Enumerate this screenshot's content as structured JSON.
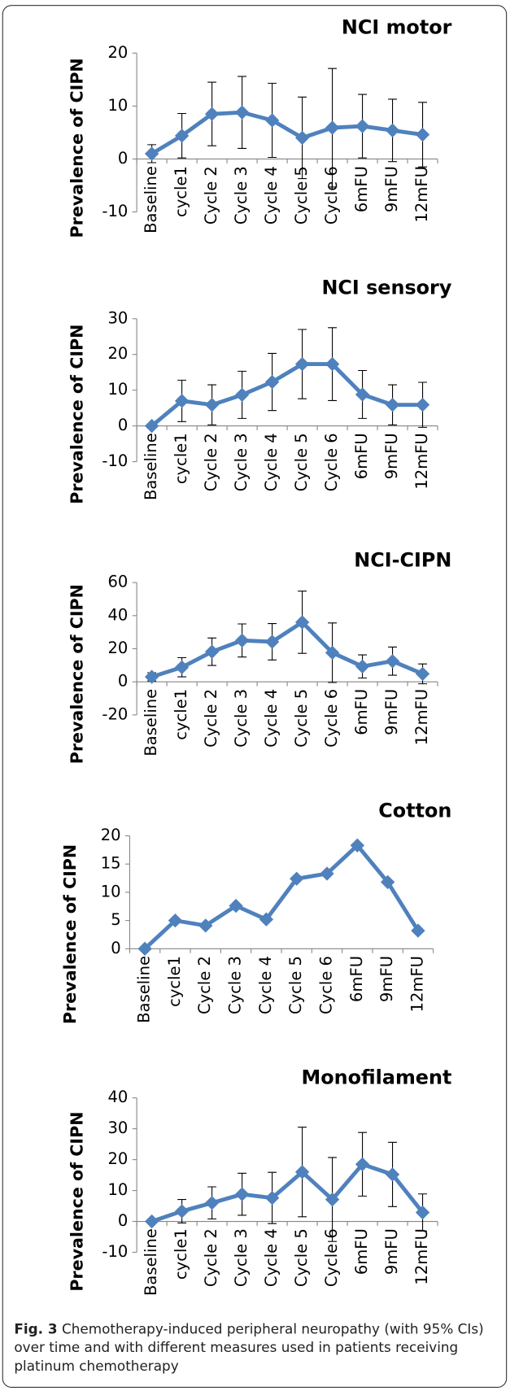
{
  "chart_data": [
    {
      "type": "line",
      "title": "NCI motor",
      "y_label": "Prevalence of CIPN",
      "categories": [
        "Baseline",
        "cycle1",
        "Cycle 2",
        "Cycle 3",
        "Cycle 4",
        "Cycle 5",
        "Cycle 6",
        "6mFU",
        "9mFU",
        "12mFU"
      ],
      "values": [
        1,
        4.4,
        8.5,
        8.8,
        7.3,
        4,
        5.9,
        6.2,
        5.4,
        4.6
      ],
      "errors": [
        1.7,
        4.2,
        6,
        6.8,
        7,
        7.7,
        11.2,
        6,
        5.9,
        6.1
      ],
      "color": "#4f81bd",
      "ylim": [
        -10,
        20
      ],
      "yticks": [
        -10,
        0,
        10,
        20
      ]
    },
    {
      "type": "line",
      "title": "NCI sensory",
      "y_label": "Prevalence of CIPN",
      "categories": [
        "Baseline",
        "cycle1",
        "Cycle 2",
        "Cycle 3",
        "Cycle 4",
        "Cycle 5",
        "Cycle 6",
        "6mFU",
        "9mFU",
        "12mFU"
      ],
      "values": [
        0,
        7,
        5.9,
        8.7,
        12.3,
        17.3,
        17.3,
        8.8,
        5.9,
        5.9
      ],
      "errors": [
        0,
        5.8,
        5.6,
        6.6,
        8,
        9.7,
        10.2,
        6.7,
        5.6,
        6.3
      ],
      "color": "#4f81bd",
      "ylim": [
        -10,
        30
      ],
      "yticks": [
        -10,
        0,
        10,
        20,
        30
      ]
    },
    {
      "type": "line",
      "title": "NCI-CIPN",
      "y_label": "Prevalence of CIPN",
      "categories": [
        "Baseline",
        "cycle1",
        "Cycle 2",
        "Cycle 3",
        "Cycle 4",
        "Cycle 5",
        "Cycle 6",
        "6mFU",
        "9mFU",
        "12mFU"
      ],
      "values": [
        3,
        8.8,
        18.2,
        25,
        24.2,
        36,
        17.6,
        9.3,
        12.5,
        4.8
      ],
      "errors": [
        2.5,
        5.8,
        8.3,
        10,
        11,
        18.8,
        18,
        7,
        8.5,
        6
      ],
      "color": "#4f81bd",
      "ylim": [
        -20,
        60
      ],
      "yticks": [
        -20,
        0,
        20,
        40,
        60
      ]
    },
    {
      "type": "line",
      "title": "Cotton",
      "y_label": "Prevalence of CIPN",
      "categories": [
        "Baseline",
        "cycle1",
        "Cycle 2",
        "Cycle 3",
        "Cycle 4",
        "Cycle 5",
        "Cycle 6",
        "6mFU",
        "9mFU",
        "12mFU"
      ],
      "values": [
        0,
        5,
        4.1,
        7.6,
        5.2,
        12.4,
        13.3,
        18.3,
        11.8,
        3.2
      ],
      "color": "#4f81bd",
      "ylim": [
        0,
        20
      ],
      "yticks": [
        0,
        5,
        10,
        15,
        20
      ]
    },
    {
      "type": "line",
      "title": "Monofilament",
      "y_label": "Prevalence of CIPN",
      "categories": [
        "Baseline",
        "cycle1",
        "Cycle 2",
        "Cycle 3",
        "Cycle 4",
        "Cycle 5",
        "Cycle 6",
        "6mFU",
        "9mFU",
        "12mFU"
      ],
      "values": [
        0,
        3.3,
        6,
        8.8,
        7.6,
        16,
        7.1,
        18.5,
        15.2,
        2.9
      ],
      "errors": [
        0,
        3.8,
        5.2,
        6.8,
        8.3,
        14.5,
        13.6,
        10.3,
        10.4,
        6
      ],
      "color": "#4f81bd",
      "ylim": [
        -10,
        40
      ],
      "yticks": [
        -10,
        0,
        10,
        20,
        30,
        40
      ]
    }
  ],
  "caption": {
    "label": "Fig. 3",
    "text": "Chemotherapy-induced peripheral neuropathy (with 95% CIs) over time and with different measures used in patients receiving platinum chemotherapy"
  }
}
